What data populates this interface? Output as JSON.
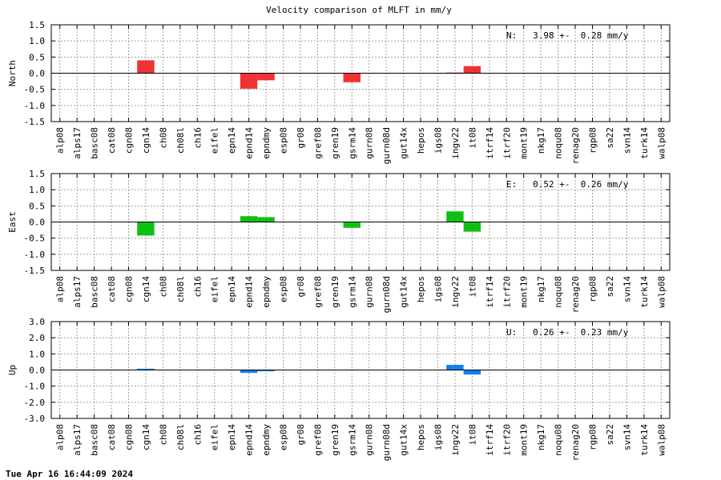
{
  "title": "Velocity comparison of MLFT in mm/y",
  "timestamp": "Tue Apr 16 16:44:09 2024",
  "stations": [
    "alp08",
    "alps17",
    "basc08",
    "cat08",
    "cgn08",
    "cgn14",
    "ch08",
    "ch08l",
    "ch16",
    "eifel",
    "epn14",
    "epnd14",
    "epndmy",
    "esp08",
    "gr08",
    "gref08",
    "gren19",
    "gsrm14",
    "gurn08",
    "gurn08d",
    "gut14x",
    "hepos",
    "igs08",
    "ingv22",
    "it08",
    "itrf14",
    "itrf20",
    "mont19",
    "nkg17",
    "noqu08",
    "renag20",
    "rgp08",
    "sa22",
    "svn14",
    "turk14",
    "walp08"
  ],
  "chart_data": [
    {
      "type": "bar",
      "ylabel": "North",
      "annotation": "N:   3.98 +-  0.28 mm/y",
      "ylim": [
        -1.5,
        1.5
      ],
      "yticks": [
        "1.5",
        "1.0",
        "0.5",
        "0.0",
        "-0.5",
        "-1.0",
        "-1.5"
      ],
      "grid": true,
      "color": "#f03232",
      "values": {
        "cgn14": 0.4,
        "epnd14": -0.48,
        "epndmy": -0.22,
        "gsrm14": -0.28,
        "ingv22": 0.02,
        "it08": 0.22
      }
    },
    {
      "type": "bar",
      "ylabel": "East",
      "annotation": "E:   0.52 +-  0.26 mm/y",
      "ylim": [
        -1.5,
        1.5
      ],
      "yticks": [
        "1.5",
        "1.0",
        "0.5",
        "0.0",
        "-0.5",
        "-1.0",
        "-1.5"
      ],
      "grid": true,
      "color": "#10c010",
      "values": {
        "cgn14": -0.42,
        "epnd14": 0.18,
        "epndmy": 0.15,
        "gsrm14": -0.18,
        "ingv22": 0.33,
        "it08": -0.3
      }
    },
    {
      "type": "bar",
      "ylabel": "Up",
      "annotation": "U:   0.26 +-  0.23 mm/y",
      "ylim": [
        -3.0,
        3.0
      ],
      "yticks": [
        "3.0",
        "2.0",
        "1.0",
        "0.0",
        "-1.0",
        "-2.0",
        "-3.0"
      ],
      "grid": true,
      "color": "#1080f0",
      "values": {
        "cgn14": 0.08,
        "epnd14": -0.18,
        "epndmy": -0.08,
        "ingv22": 0.32,
        "it08": -0.28
      }
    }
  ]
}
